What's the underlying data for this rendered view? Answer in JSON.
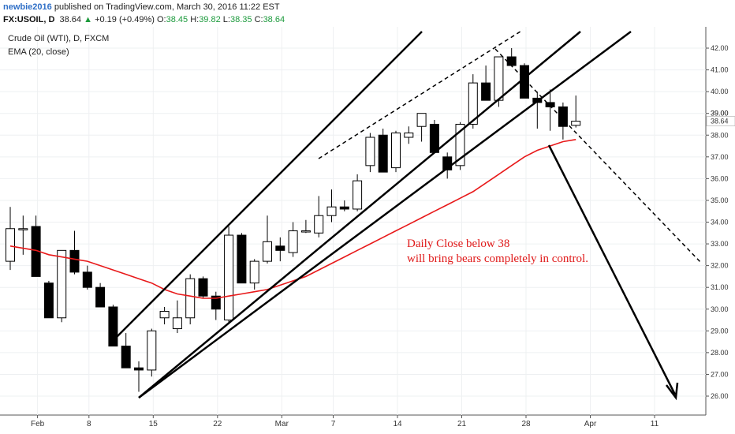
{
  "header": {
    "author": "newbie2016",
    "published": "published on TradingView.com, March 30, 2016 11:22 EST",
    "symbol": "FX:USOIL, D",
    "last": "38.64",
    "change": "+0.19 (+0.49%)",
    "open_label": "O:",
    "open": "38.45",
    "high_label": "H:",
    "high": "39.82",
    "low_label": "L:",
    "low": "38.35",
    "close_label": "C:",
    "close": "38.64"
  },
  "chart_legend": {
    "title": "Crude Oil (WTI), D, FXCM",
    "indicator": "EMA (20, close)"
  },
  "annotation": {
    "line1": "Daily Close below 38",
    "line2": "will bring bears completely in control."
  },
  "colors": {
    "up_candle": "#ffffff",
    "down_candle": "#000000",
    "ema": "#e8191a",
    "annotation": "#e01a1a",
    "author": "#2f6fc7",
    "positive": "#1c9a3c"
  },
  "chart_data": {
    "type": "candlestick",
    "y_axis": {
      "ticks": [
        26,
        27,
        28,
        29,
        30,
        31,
        32,
        33,
        34,
        35,
        36,
        37,
        38,
        39,
        40,
        41,
        42
      ],
      "ylim": [
        25.6,
        42.3
      ],
      "current_price": "38.64",
      "extra_tick": "39.00"
    },
    "x_axis": {
      "labels": [
        "Feb",
        "8",
        "15",
        "22",
        "Mar",
        "7",
        "14",
        "21",
        "28",
        "Apr",
        "11"
      ],
      "label_index": [
        2,
        6,
        11,
        16,
        21,
        25,
        30,
        35,
        40,
        45,
        50
      ]
    },
    "candles": [
      {
        "o": 32.2,
        "h": 34.7,
        "l": 31.8,
        "c": 33.7
      },
      {
        "o": 33.7,
        "h": 34.3,
        "l": 32.5,
        "c": 33.7
      },
      {
        "o": 33.8,
        "h": 34.3,
        "l": 31.5,
        "c": 31.5
      },
      {
        "o": 31.2,
        "h": 31.3,
        "l": 29.6,
        "c": 29.6
      },
      {
        "o": 29.6,
        "h": 32.7,
        "l": 29.4,
        "c": 32.7
      },
      {
        "o": 32.7,
        "h": 33.6,
        "l": 31.6,
        "c": 31.7
      },
      {
        "o": 31.7,
        "h": 32.0,
        "l": 30.9,
        "c": 31.0
      },
      {
        "o": 31.0,
        "h": 31.2,
        "l": 30.1,
        "c": 30.1
      },
      {
        "o": 30.1,
        "h": 30.2,
        "l": 28.3,
        "c": 28.3
      },
      {
        "o": 28.3,
        "h": 28.9,
        "l": 27.3,
        "c": 27.3
      },
      {
        "o": 27.3,
        "h": 27.6,
        "l": 26.2,
        "c": 27.2
      },
      {
        "o": 27.2,
        "h": 29.1,
        "l": 26.9,
        "c": 29.0
      },
      {
        "o": 29.6,
        "h": 30.1,
        "l": 29.3,
        "c": 29.9
      },
      {
        "o": 29.1,
        "h": 30.4,
        "l": 28.9,
        "c": 29.6
      },
      {
        "o": 29.6,
        "h": 31.6,
        "l": 29.3,
        "c": 31.4
      },
      {
        "o": 31.4,
        "h": 31.5,
        "l": 30.5,
        "c": 30.6
      },
      {
        "o": 30.6,
        "h": 30.8,
        "l": 29.5,
        "c": 30.0
      },
      {
        "o": 29.5,
        "h": 33.8,
        "l": 29.4,
        "c": 33.4
      },
      {
        "o": 33.4,
        "h": 33.5,
        "l": 31.2,
        "c": 31.2
      },
      {
        "o": 31.2,
        "h": 32.3,
        "l": 30.9,
        "c": 32.2
      },
      {
        "o": 32.2,
        "h": 34.3,
        "l": 32.1,
        "c": 33.1
      },
      {
        "o": 32.9,
        "h": 33.3,
        "l": 32.2,
        "c": 32.7
      },
      {
        "o": 32.6,
        "h": 34.0,
        "l": 32.4,
        "c": 33.6
      },
      {
        "o": 33.6,
        "h": 34.1,
        "l": 33.5,
        "c": 33.6
      },
      {
        "o": 33.5,
        "h": 35.2,
        "l": 33.3,
        "c": 34.3
      },
      {
        "o": 34.3,
        "h": 35.5,
        "l": 34.0,
        "c": 34.7
      },
      {
        "o": 34.7,
        "h": 35.0,
        "l": 34.5,
        "c": 34.6
      },
      {
        "o": 34.6,
        "h": 36.2,
        "l": 34.5,
        "c": 35.9
      },
      {
        "o": 36.6,
        "h": 38.1,
        "l": 36.3,
        "c": 37.9
      },
      {
        "o": 38.0,
        "h": 38.3,
        "l": 36.3,
        "c": 36.3
      },
      {
        "o": 36.5,
        "h": 38.2,
        "l": 36.3,
        "c": 38.1
      },
      {
        "o": 37.9,
        "h": 38.4,
        "l": 37.6,
        "c": 38.1
      },
      {
        "o": 38.4,
        "h": 39.0,
        "l": 37.7,
        "c": 39.0
      },
      {
        "o": 38.5,
        "h": 38.7,
        "l": 37.2,
        "c": 37.2
      },
      {
        "o": 37.0,
        "h": 37.2,
        "l": 36.0,
        "c": 36.4
      },
      {
        "o": 36.6,
        "h": 38.6,
        "l": 36.4,
        "c": 38.5
      },
      {
        "o": 38.5,
        "h": 40.8,
        "l": 38.3,
        "c": 40.4
      },
      {
        "o": 40.4,
        "h": 41.2,
        "l": 39.6,
        "c": 39.6
      },
      {
        "o": 39.6,
        "h": 41.6,
        "l": 39.3,
        "c": 41.6
      },
      {
        "o": 41.6,
        "h": 42.0,
        "l": 41.2,
        "c": 41.2
      },
      {
        "o": 41.2,
        "h": 41.3,
        "l": 39.7,
        "c": 39.7
      },
      {
        "o": 39.7,
        "h": 40.0,
        "l": 38.3,
        "c": 39.5
      },
      {
        "o": 39.5,
        "h": 40.1,
        "l": 38.2,
        "c": 39.3
      },
      {
        "o": 39.3,
        "h": 39.5,
        "l": 37.8,
        "c": 38.4
      },
      {
        "o": 38.45,
        "h": 39.82,
        "l": 38.35,
        "c": 38.64
      }
    ],
    "ema_20": [
      32.9,
      32.8,
      32.7,
      32.5,
      32.4,
      32.3,
      32.2,
      32.0,
      31.8,
      31.6,
      31.4,
      31.2,
      30.9,
      30.7,
      30.6,
      30.5,
      30.5,
      30.6,
      30.7,
      30.8,
      30.9,
      31.1,
      31.3,
      31.5,
      31.8,
      32.1,
      32.4,
      32.7,
      33.0,
      33.3,
      33.6,
      33.9,
      34.2,
      34.5,
      34.8,
      35.1,
      35.4,
      35.8,
      36.2,
      36.6,
      37.0,
      37.3,
      37.5,
      37.7,
      37.8
    ]
  }
}
